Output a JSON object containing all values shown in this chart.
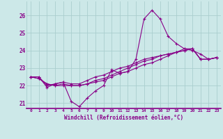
{
  "xlabel": "Windchill (Refroidissement éolien,°C)",
  "background_color": "#cce8e8",
  "grid_color": "#aacece",
  "line_color": "#880088",
  "hours": [
    0,
    1,
    2,
    3,
    4,
    5,
    6,
    7,
    8,
    9,
    10,
    11,
    12,
    13,
    14,
    15,
    16,
    17,
    18,
    19,
    20,
    21,
    22,
    23
  ],
  "series1": [
    22.5,
    22.5,
    21.9,
    22.1,
    22.2,
    21.1,
    20.8,
    21.3,
    21.7,
    22.0,
    22.9,
    22.7,
    22.8,
    23.5,
    25.8,
    26.3,
    25.8,
    24.8,
    24.4,
    24.1,
    24.0,
    23.8,
    23.5,
    23.6
  ],
  "series2": [
    22.5,
    22.5,
    22.0,
    22.1,
    22.2,
    22.1,
    22.1,
    22.3,
    22.5,
    22.6,
    22.8,
    23.0,
    23.1,
    23.3,
    23.5,
    23.6,
    23.7,
    23.8,
    23.9,
    24.0,
    24.1,
    23.5,
    23.5,
    23.6
  ],
  "series3": [
    22.5,
    22.4,
    22.1,
    22.0,
    22.1,
    22.0,
    22.0,
    22.1,
    22.3,
    22.4,
    22.6,
    22.8,
    23.0,
    23.2,
    23.4,
    23.5,
    23.7,
    23.8,
    23.9,
    24.1,
    24.1,
    23.5,
    23.5,
    23.6
  ],
  "series4": [
    22.5,
    22.4,
    22.1,
    22.0,
    22.0,
    22.0,
    22.0,
    22.1,
    22.2,
    22.3,
    22.5,
    22.7,
    22.8,
    23.0,
    23.2,
    23.3,
    23.5,
    23.7,
    23.9,
    24.0,
    24.1,
    23.5,
    23.5,
    23.6
  ],
  "ylim": [
    20.7,
    26.8
  ],
  "yticks": [
    21,
    22,
    23,
    24,
    25,
    26
  ],
  "xlim": [
    -0.5,
    23.5
  ]
}
